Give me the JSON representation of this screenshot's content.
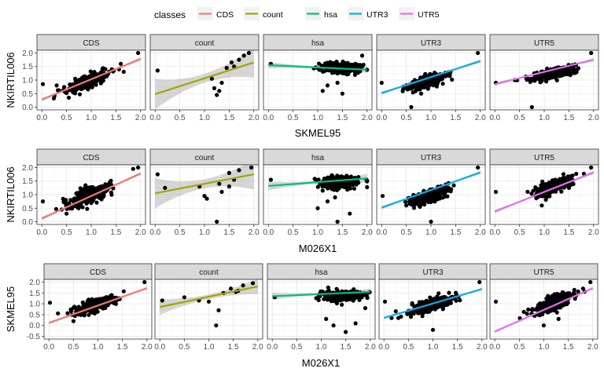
{
  "legend": {
    "title": "classes",
    "items": [
      {
        "label": "CDS",
        "color": "#F8766D"
      },
      {
        "label": "count",
        "color": "#A3A500"
      },
      {
        "label": "hsa",
        "color": "#00BF7D"
      },
      {
        "label": "UTR3",
        "color": "#00B0F6"
      },
      {
        "label": "UTR5",
        "color": "#E76BF3"
      }
    ]
  },
  "chart_data": [
    {
      "type": "scatter",
      "xlabel": "SKMEL95",
      "ylabel": "NKIRTIL006",
      "xlim": [
        0,
        2
      ],
      "ylim": [
        0,
        2
      ],
      "xticks": [
        "0.0",
        "0.5",
        "1.0",
        "1.5",
        "2.0"
      ],
      "yticks": [
        "0.0",
        "0.5",
        "1.0",
        "1.5",
        "2.0"
      ],
      "panels": [
        {
          "label": "CDS",
          "color": "#F8766D",
          "center": [
            0.95,
            0.95
          ],
          "spread": [
            0.22,
            0.22
          ],
          "extra_points": [
            [
              0.02,
              0.85
            ],
            [
              1.95,
              2.0
            ],
            [
              1.6,
              1.6
            ],
            [
              0.3,
              0.8
            ]
          ],
          "fit": [
            [
              0,
              0.28
            ],
            [
              2,
              1.78
            ]
          ],
          "band": 0.03
        },
        {
          "label": "count",
          "color": "#A3A500",
          "points": [
            [
              0.05,
              1.35
            ],
            [
              1.2,
              0.7
            ],
            [
              1.25,
              0.45
            ],
            [
              1.3,
              0.6
            ],
            [
              1.45,
              1.45
            ],
            [
              1.55,
              1.65
            ],
            [
              1.7,
              1.75
            ],
            [
              1.8,
              1.9
            ],
            [
              1.9,
              2.0
            ],
            [
              1.15,
              1.05
            ],
            [
              1.35,
              0.9
            ],
            [
              1.6,
              1.5
            ]
          ],
          "fit": [
            [
              0,
              0.48
            ],
            [
              2,
              1.65
            ]
          ],
          "band": 0.28
        },
        {
          "label": "hsa",
          "color": "#00BF7D",
          "center": [
            1.45,
            1.45
          ],
          "spread": [
            0.2,
            0.18
          ],
          "extra_points": [
            [
              0.05,
              1.6
            ],
            [
              1.2,
              0.8
            ],
            [
              1.1,
              0.6
            ],
            [
              1.5,
              0.5
            ],
            [
              1.4,
              0.9
            ],
            [
              1.9,
              1.9
            ]
          ],
          "fit": [
            [
              0,
              1.55
            ],
            [
              2,
              1.38
            ]
          ],
          "band": 0.06
        },
        {
          "label": "UTR3",
          "color": "#00B0F6",
          "center": [
            0.95,
            0.95
          ],
          "spread": [
            0.2,
            0.2
          ],
          "extra_points": [
            [
              0.0,
              0.9
            ],
            [
              0.6,
              0.0
            ],
            [
              1.95,
              2.0
            ],
            [
              0.8,
              0.5
            ]
          ],
          "fit": [
            [
              0,
              0.52
            ],
            [
              2,
              1.7
            ]
          ],
          "band": 0.03
        },
        {
          "label": "UTR5",
          "color": "#E76BF3",
          "center": [
            1.2,
            1.25
          ],
          "spread": [
            0.22,
            0.15
          ],
          "extra_points": [
            [
              0.02,
              0.9
            ],
            [
              0.75,
              0.0
            ],
            [
              1.95,
              2.0
            ],
            [
              0.4,
              1.0
            ]
          ],
          "fit": [
            [
              0,
              0.85
            ],
            [
              2,
              1.75
            ]
          ],
          "band": 0.03
        }
      ]
    },
    {
      "type": "scatter",
      "xlabel": "M026X1",
      "ylabel": "NKIRTIL006",
      "xlim": [
        0,
        2
      ],
      "ylim": [
        0,
        2
      ],
      "xticks": [
        "0.0",
        "0.5",
        "1.0",
        "1.5",
        "2.0"
      ],
      "yticks": [
        "0.0",
        "0.5",
        "1.0",
        "1.5",
        "2.0"
      ],
      "panels": [
        {
          "label": "CDS",
          "color": "#F8766D",
          "center": [
            0.95,
            0.95
          ],
          "spread": [
            0.22,
            0.25
          ],
          "extra_points": [
            [
              0.02,
              0.75
            ],
            [
              1.95,
              2.0
            ],
            [
              1.85,
              1.95
            ],
            [
              0.5,
              0.3
            ]
          ],
          "fit": [
            [
              0,
              0.12
            ],
            [
              2,
              1.78
            ]
          ],
          "band": 0.03
        },
        {
          "label": "count",
          "color": "#A3A500",
          "points": [
            [
              0.05,
              1.75
            ],
            [
              0.2,
              1.25
            ],
            [
              0.9,
              1.3
            ],
            [
              1.0,
              0.95
            ],
            [
              1.3,
              1.4
            ],
            [
              1.35,
              1.1
            ],
            [
              1.5,
              1.8
            ],
            [
              1.6,
              1.55
            ],
            [
              1.7,
              1.9
            ],
            [
              1.95,
              2.0
            ],
            [
              1.05,
              0.85
            ],
            [
              1.25,
              0.0
            ],
            [
              1.5,
              1.3
            ]
          ],
          "fit": [
            [
              0,
              1.05
            ],
            [
              2,
              1.75
            ]
          ],
          "band": 0.28
        },
        {
          "label": "hsa",
          "color": "#00BF7D",
          "center": [
            1.45,
            1.45
          ],
          "spread": [
            0.2,
            0.2
          ],
          "extra_points": [
            [
              0.05,
              1.55
            ],
            [
              1.0,
              0.5
            ],
            [
              1.2,
              0.75
            ],
            [
              1.35,
              0.9
            ],
            [
              1.4,
              0.0
            ],
            [
              1.65,
              0.3
            ]
          ],
          "fit": [
            [
              0,
              1.32
            ],
            [
              2,
              1.6
            ]
          ],
          "band": 0.08
        },
        {
          "label": "UTR3",
          "color": "#00B0F6",
          "center": [
            0.95,
            0.95
          ],
          "spread": [
            0.2,
            0.2
          ],
          "extra_points": [
            [
              0.02,
              0.95
            ],
            [
              1.0,
              0.0
            ],
            [
              1.95,
              2.0
            ],
            [
              0.5,
              0.6
            ]
          ],
          "fit": [
            [
              0,
              0.52
            ],
            [
              2,
              1.82
            ]
          ],
          "band": 0.03
        },
        {
          "label": "UTR5",
          "color": "#E76BF3",
          "center": [
            1.2,
            1.3
          ],
          "spread": [
            0.2,
            0.22
          ],
          "extra_points": [
            [
              0.02,
              1.1
            ],
            [
              0.95,
              0.6
            ],
            [
              1.95,
              2.0
            ]
          ],
          "fit": [
            [
              0,
              0.38
            ],
            [
              2,
              1.82
            ]
          ],
          "band": 0.03
        }
      ]
    },
    {
      "type": "scatter",
      "xlabel": "M026X1",
      "ylabel": "SKMEL95",
      "xlim": [
        0,
        2
      ],
      "ylim": [
        -0.5,
        2
      ],
      "xticks": [
        "0.0",
        "0.5",
        "1.0",
        "1.5",
        "2.0"
      ],
      "yticks": [
        "-0.5",
        "0.0",
        "0.5",
        "1.0",
        "1.5",
        "2.0"
      ],
      "panels": [
        {
          "label": "CDS",
          "color": "#F8766D",
          "center": [
            0.95,
            0.95
          ],
          "spread": [
            0.22,
            0.25
          ],
          "extra_points": [
            [
              0.02,
              1.05
            ],
            [
              1.95,
              2.0
            ],
            [
              0.5,
              0.2
            ]
          ],
          "fit": [
            [
              0,
              0.12
            ],
            [
              2,
              1.72
            ]
          ],
          "band": 0.03
        },
        {
          "label": "count",
          "color": "#A3A500",
          "points": [
            [
              0.05,
              1.15
            ],
            [
              0.5,
              1.3
            ],
            [
              0.8,
              1.15
            ],
            [
              1.0,
              1.1
            ],
            [
              1.3,
              1.5
            ],
            [
              1.45,
              1.7
            ],
            [
              1.55,
              1.55
            ],
            [
              1.7,
              1.85
            ],
            [
              1.9,
              1.95
            ],
            [
              1.2,
              0.7
            ],
            [
              1.15,
              0.0
            ],
            [
              1.6,
              1.6
            ]
          ],
          "fit": [
            [
              0,
              0.85
            ],
            [
              2,
              1.8
            ]
          ],
          "band": 0.18
        },
        {
          "label": "hsa",
          "color": "#00BF7D",
          "center": [
            1.45,
            1.35
          ],
          "spread": [
            0.2,
            0.22
          ],
          "extra_points": [
            [
              0.05,
              1.3
            ],
            [
              1.1,
              0.3
            ],
            [
              1.25,
              0.0
            ],
            [
              1.5,
              -0.3
            ],
            [
              1.7,
              0.1
            ],
            [
              1.9,
              0.8
            ]
          ],
          "fit": [
            [
              0,
              1.35
            ],
            [
              2,
              1.55
            ]
          ],
          "band": 0.08
        },
        {
          "label": "UTR3",
          "color": "#00B0F6",
          "center": [
            0.95,
            0.95
          ],
          "spread": [
            0.22,
            0.25
          ],
          "extra_points": [
            [
              0.02,
              1.1
            ],
            [
              1.0,
              -0.2
            ],
            [
              1.95,
              2.0
            ],
            [
              0.55,
              0.4
            ]
          ],
          "fit": [
            [
              0,
              0.35
            ],
            [
              2,
              1.68
            ]
          ],
          "band": 0.03
        },
        {
          "label": "UTR5",
          "color": "#E76BF3",
          "center": [
            1.2,
            1.05
          ],
          "spread": [
            0.2,
            0.28
          ],
          "extra_points": [
            [
              0.02,
              1.1
            ],
            [
              1.0,
              0.0
            ],
            [
              1.95,
              2.0
            ],
            [
              1.3,
              0.3
            ]
          ],
          "fit": [
            [
              0,
              -0.28
            ],
            [
              2,
              1.72
            ]
          ],
          "band": 0.03
        }
      ]
    }
  ]
}
